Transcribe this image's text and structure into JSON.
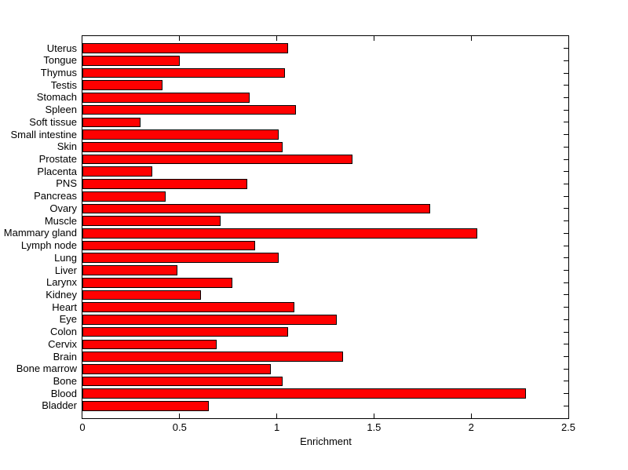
{
  "figure": {
    "background": "#ffffff"
  },
  "chart_data": {
    "type": "bar",
    "orientation": "horizontal",
    "title": "",
    "xlabel": "Enrichment",
    "ylabel": "",
    "xlim": [
      0,
      2.5
    ],
    "x_ticks": [
      0,
      0.5,
      1,
      1.5,
      2,
      2.5
    ],
    "x_tick_labels": [
      "0",
      "0.5",
      "1",
      "1.5",
      "2",
      "2.5"
    ],
    "grid": false,
    "legend_position": "none",
    "bar_color": "#ff0000",
    "bar_edge_color": "#000000",
    "categories": [
      "Uterus",
      "Tongue",
      "Thymus",
      "Testis",
      "Stomach",
      "Spleen",
      "Soft tissue",
      "Small intestine",
      "Skin",
      "Prostate",
      "Placenta",
      "PNS",
      "Pancreas",
      "Ovary",
      "Muscle",
      "Mammary gland",
      "Lymph node",
      "Lung",
      "Liver",
      "Larynx",
      "Kidney",
      "Heart",
      "Eye",
      "Colon",
      "Cervix",
      "Brain",
      "Bone marrow",
      "Bone",
      "Blood",
      "Bladder"
    ],
    "values": [
      1.06,
      0.5,
      1.04,
      0.41,
      0.86,
      1.1,
      0.3,
      1.01,
      1.03,
      1.39,
      0.36,
      0.85,
      0.43,
      1.79,
      0.71,
      2.03,
      0.89,
      1.01,
      0.49,
      0.77,
      0.61,
      1.09,
      1.31,
      1.06,
      0.69,
      1.34,
      0.97,
      1.03,
      2.28,
      0.65
    ]
  }
}
